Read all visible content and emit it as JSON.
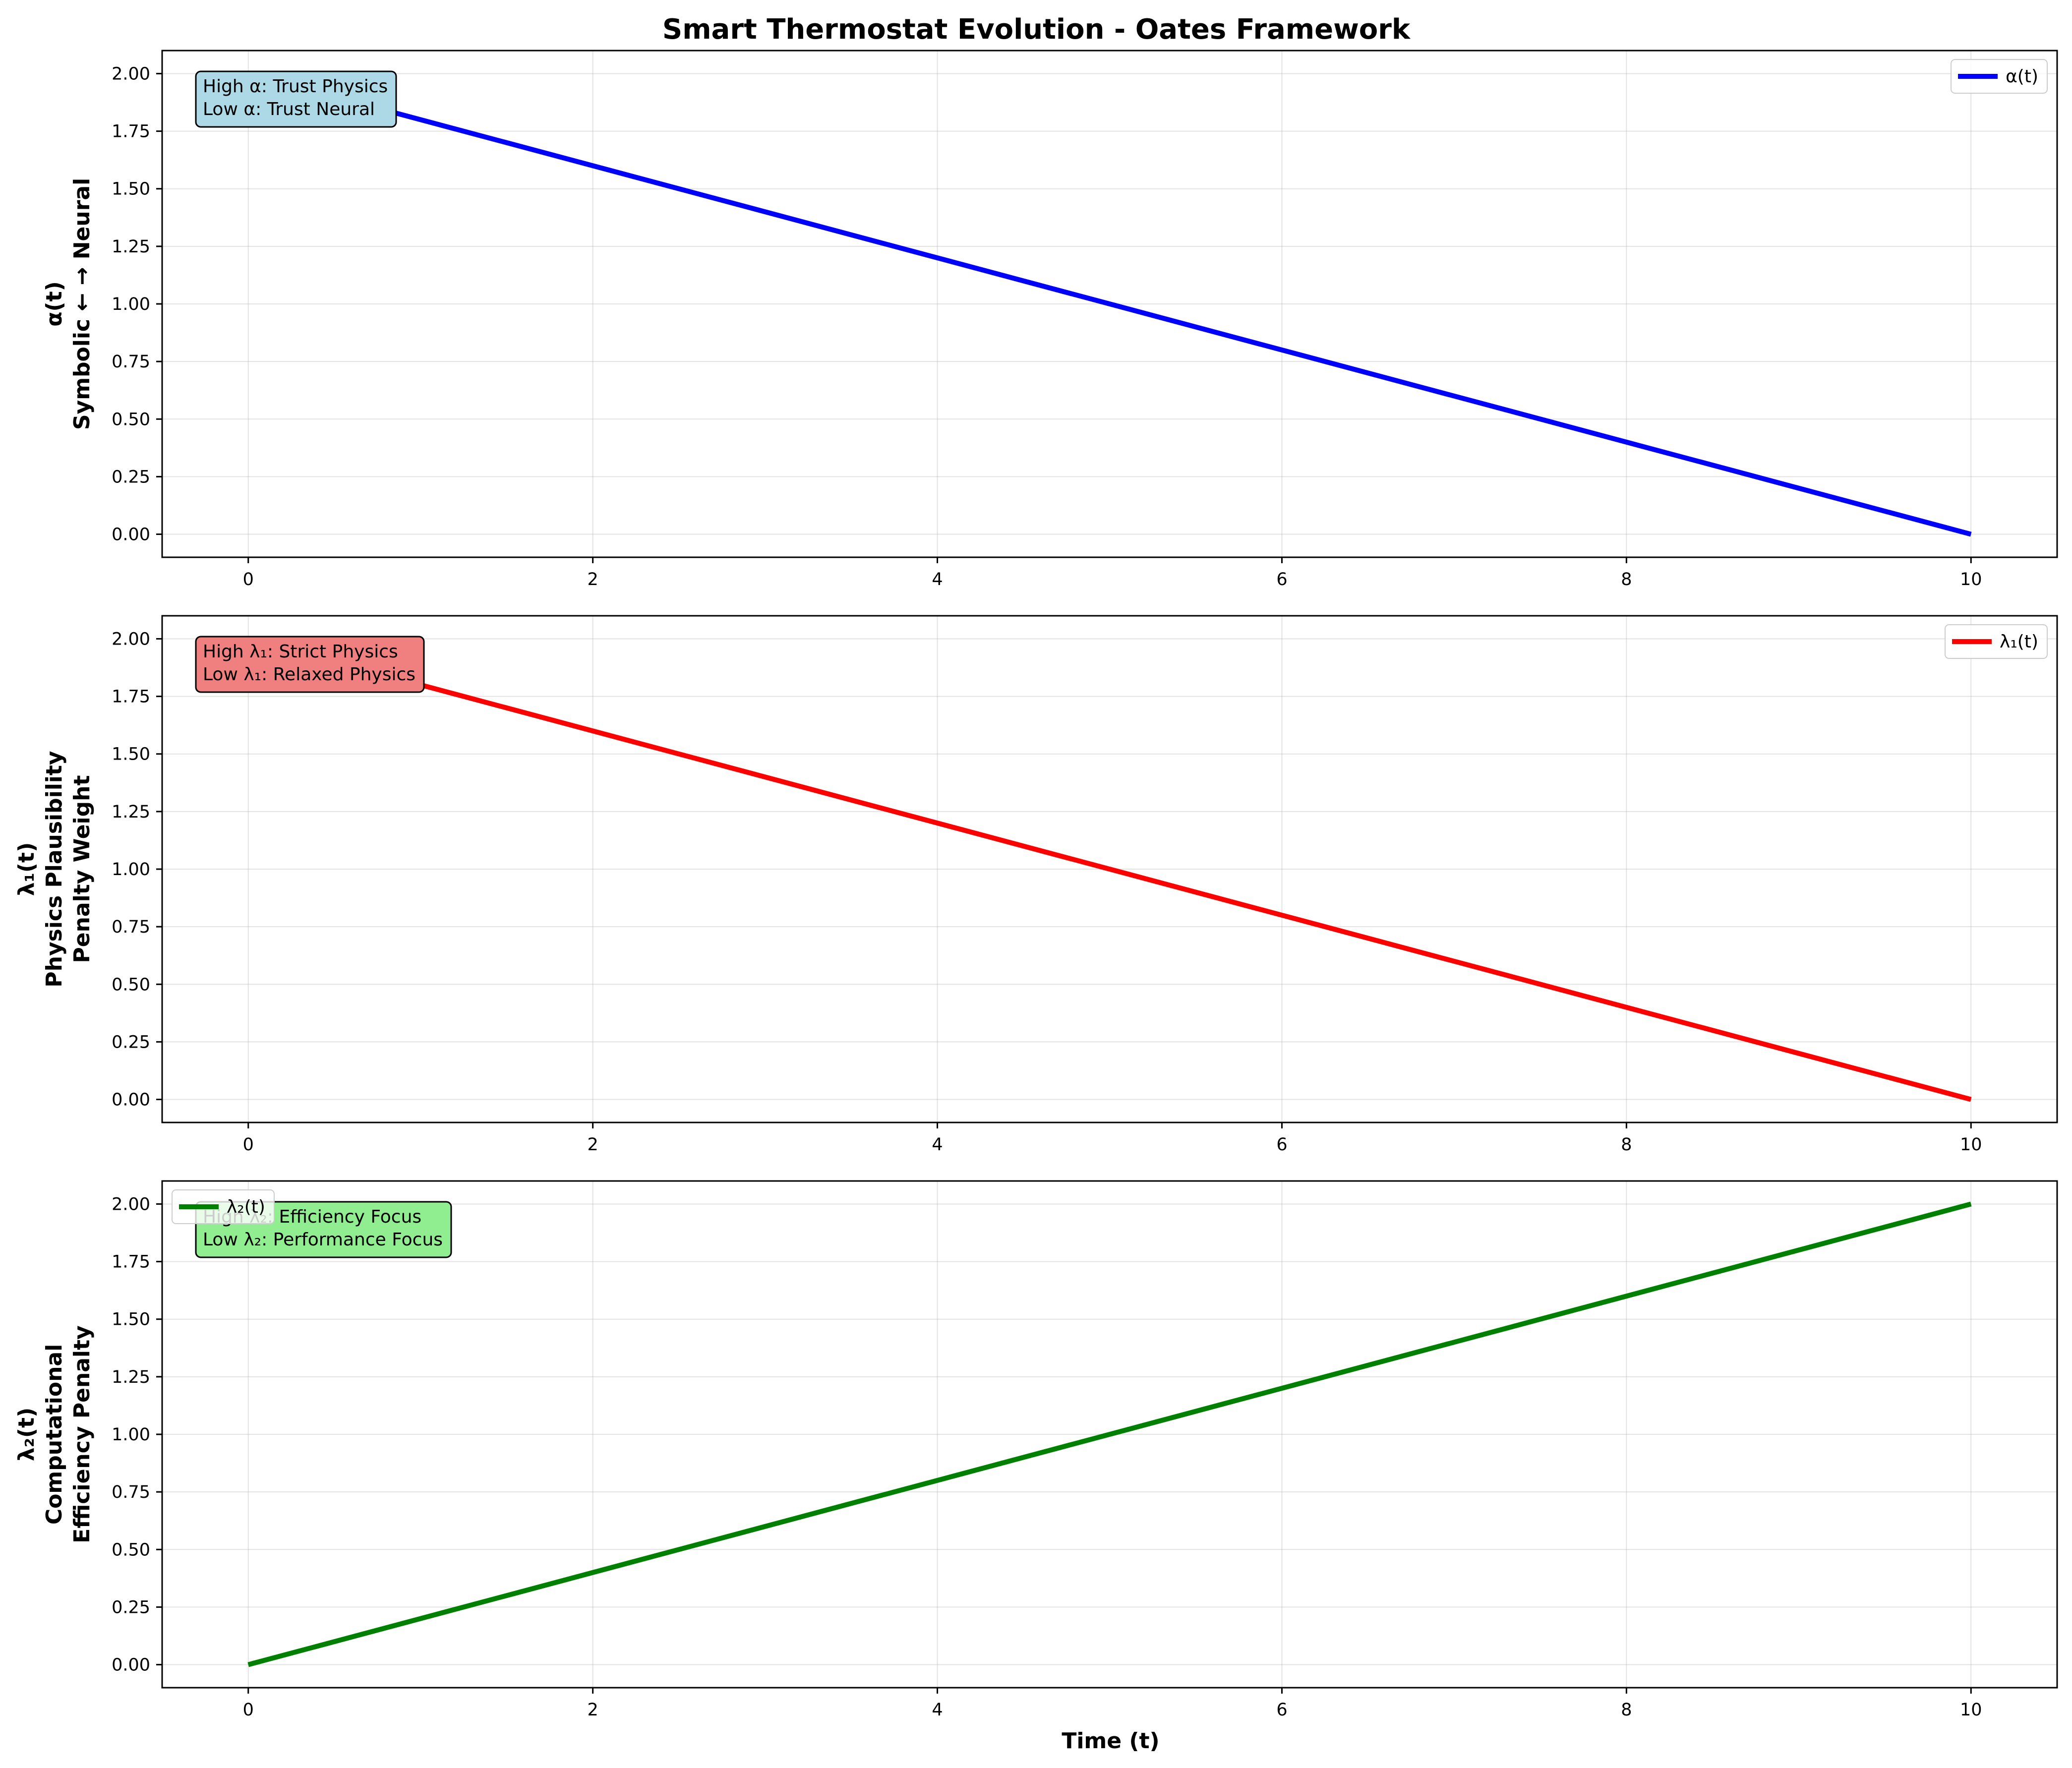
{
  "chart_data": {
    "title": "Smart Thermostat Evolution - Oates Framework",
    "xlabel": "Time (t)",
    "subplots": [
      {
        "type": "line",
        "x": [
          0,
          10
        ],
        "y": [
          2.0,
          0.0
        ],
        "xlim": [
          -0.5,
          10.5
        ],
        "ylim": [
          -0.1,
          2.1
        ],
        "xticks": [
          "0",
          "2",
          "4",
          "6",
          "8",
          "10"
        ],
        "yticks": [
          "0.00",
          "0.25",
          "0.50",
          "0.75",
          "1.00",
          "1.25",
          "1.50",
          "1.75",
          "2.00"
        ],
        "ylabel_lines": [
          "α(t)",
          "Symbolic ← → Neural"
        ],
        "series_name": "α(t)",
        "color": "#0000ff",
        "legend": "upper-right",
        "annotation_lines": [
          "High α: Trust Physics",
          "Low α: Trust Neural"
        ],
        "annotation_color": "#add8e6",
        "grid": true
      },
      {
        "type": "line",
        "x": [
          0,
          10
        ],
        "y": [
          2.0,
          0.0
        ],
        "xlim": [
          -0.5,
          10.5
        ],
        "ylim": [
          -0.1,
          2.1
        ],
        "xticks": [
          "0",
          "2",
          "4",
          "6",
          "8",
          "10"
        ],
        "yticks": [
          "0.00",
          "0.25",
          "0.50",
          "0.75",
          "1.00",
          "1.25",
          "1.50",
          "1.75",
          "2.00"
        ],
        "ylabel_lines": [
          "λ₁(t)",
          "Physics Plausibility",
          "Penalty Weight"
        ],
        "series_name": "λ₁(t)",
        "color": "#ff0000",
        "legend": "upper-right",
        "annotation_lines": [
          "High λ₁: Strict Physics",
          "Low λ₁: Relaxed Physics"
        ],
        "annotation_color": "#f08080",
        "grid": true
      },
      {
        "type": "line",
        "x": [
          0,
          10
        ],
        "y": [
          0.0,
          2.0
        ],
        "xlim": [
          -0.5,
          10.5
        ],
        "ylim": [
          -0.1,
          2.1
        ],
        "xticks": [
          "0",
          "2",
          "4",
          "6",
          "8",
          "10"
        ],
        "yticks": [
          "0.00",
          "0.25",
          "0.50",
          "0.75",
          "1.00",
          "1.25",
          "1.50",
          "1.75",
          "2.00"
        ],
        "ylabel_lines": [
          "λ₂(t)",
          "Computational",
          "Efficiency Penalty"
        ],
        "series_name": "λ₂(t)",
        "color": "#008000",
        "legend": "upper-left",
        "annotation_lines": [
          "High λ₂: Efficiency Focus",
          "Low λ₂: Performance Focus"
        ],
        "annotation_color": "#90ee90",
        "grid": true
      }
    ]
  }
}
